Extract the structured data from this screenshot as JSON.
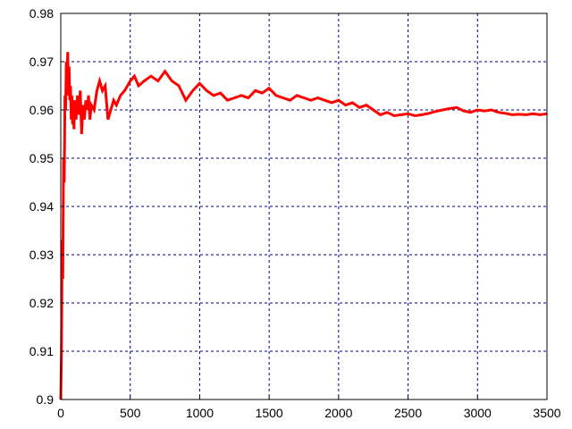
{
  "chart_data": {
    "type": "line",
    "title": "",
    "xlabel": "",
    "ylabel": "",
    "xlim": [
      0,
      3500
    ],
    "ylim": [
      0.9,
      0.98
    ],
    "grid": true,
    "x_ticks": [
      0,
      500,
      1000,
      1500,
      2000,
      2500,
      3000,
      3500
    ],
    "y_ticks": [
      0.9,
      0.91,
      0.92,
      0.93,
      0.94,
      0.95,
      0.96,
      0.97,
      0.98
    ],
    "x_tick_labels": [
      "0",
      "500",
      "1000",
      "1500",
      "2000",
      "2500",
      "3000",
      "3500"
    ],
    "y_tick_labels": [
      "0.9",
      "0.91",
      "0.92",
      "0.93",
      "0.94",
      "0.95",
      "0.96",
      "0.97",
      "0.98"
    ],
    "colors": {
      "series": "#ff0000",
      "grid": "#00008b",
      "axes": "#000000"
    },
    "series": [
      {
        "x": [
          0,
          5,
          10,
          15,
          20,
          25,
          30,
          35,
          40,
          45,
          50,
          55,
          60,
          65,
          70,
          75,
          80,
          85,
          90,
          95,
          100,
          110,
          120,
          130,
          140,
          150,
          160,
          170,
          180,
          190,
          200,
          210,
          220,
          240,
          260,
          280,
          300,
          320,
          340,
          360,
          380,
          400,
          430,
          460,
          500,
          530,
          560,
          600,
          650,
          700,
          750,
          800,
          850,
          900,
          950,
          1000,
          1050,
          1100,
          1150,
          1200,
          1250,
          1300,
          1350,
          1400,
          1450,
          1500,
          1550,
          1600,
          1650,
          1700,
          1750,
          1800,
          1850,
          1900,
          1950,
          2000,
          2050,
          2100,
          2150,
          2200,
          2250,
          2300,
          2350,
          2400,
          2450,
          2500,
          2550,
          2600,
          2650,
          2700,
          2750,
          2800,
          2850,
          2900,
          2950,
          3000,
          3050,
          3100,
          3150,
          3200,
          3250,
          3300,
          3350,
          3400,
          3450,
          3500
        ],
        "y": [
          0.9,
          0.91,
          0.933,
          0.925,
          0.95,
          0.945,
          0.963,
          0.96,
          0.97,
          0.968,
          0.972,
          0.963,
          0.969,
          0.962,
          0.965,
          0.958,
          0.963,
          0.957,
          0.961,
          0.956,
          0.962,
          0.958,
          0.963,
          0.959,
          0.964,
          0.955,
          0.961,
          0.958,
          0.962,
          0.96,
          0.963,
          0.958,
          0.961,
          0.96,
          0.964,
          0.966,
          0.964,
          0.965,
          0.958,
          0.96,
          0.962,
          0.961,
          0.963,
          0.964,
          0.966,
          0.967,
          0.965,
          0.966,
          0.967,
          0.966,
          0.968,
          0.966,
          0.965,
          0.962,
          0.964,
          0.9655,
          0.964,
          0.963,
          0.9635,
          0.962,
          0.9625,
          0.963,
          0.9625,
          0.964,
          0.9635,
          0.9645,
          0.963,
          0.9625,
          0.962,
          0.963,
          0.9625,
          0.962,
          0.9625,
          0.962,
          0.9615,
          0.962,
          0.961,
          0.9615,
          0.9605,
          0.961,
          0.96,
          0.959,
          0.9595,
          0.9588,
          0.959,
          0.9592,
          0.9588,
          0.959,
          0.9593,
          0.9597,
          0.96,
          0.9603,
          0.9605,
          0.9598,
          0.9595,
          0.96,
          0.9598,
          0.96,
          0.9595,
          0.9593,
          0.959,
          0.9591,
          0.959,
          0.9592,
          0.959,
          0.9592
        ]
      }
    ]
  }
}
